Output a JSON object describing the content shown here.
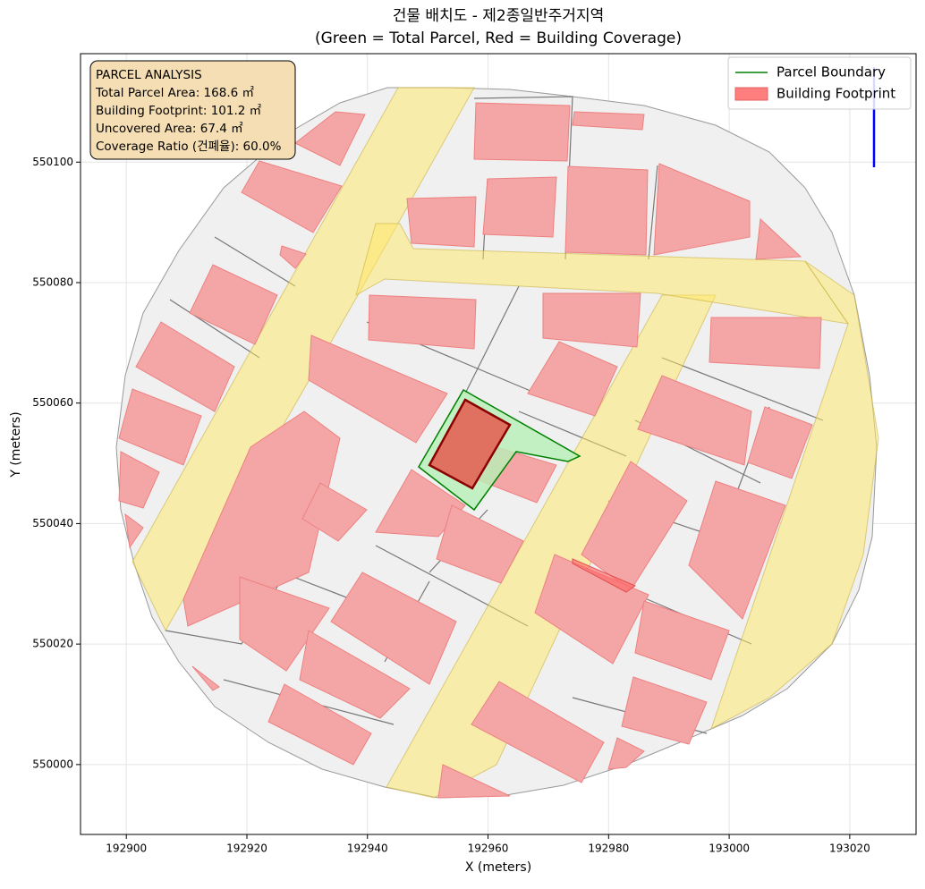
{
  "chart_data": {
    "type": "map",
    "title": "건물 배치도 - 제2종일반주거지역",
    "subtitle": "(Green = Total Parcel, Red = Building Coverage)",
    "xlabel": "X (meters)",
    "ylabel": "Y (meters)",
    "xlim": [
      192892.4,
      193031.0
    ],
    "ylim": [
      549988.4,
      550118.0
    ],
    "xticks": [
      192900,
      192920,
      192940,
      192960,
      192980,
      193000,
      193020
    ],
    "yticks": [
      550000,
      550020,
      550040,
      550060,
      550080,
      550100
    ],
    "grid": true,
    "legend_position": "upper right",
    "legend": [
      {
        "name": "Parcel Boundary",
        "color": "#008000"
      },
      {
        "name": "Building Footprint",
        "color": "#ff7f7f"
      }
    ],
    "annotation": [
      "PARCEL ANALYSIS",
      "Total Parcel Area: 168.6 ㎡",
      "Building Footprint: 101.2 ㎡",
      "Uncovered Area: 67.4 ㎡",
      "Coverage Ratio (건폐율): 60.0%"
    ]
  }
}
